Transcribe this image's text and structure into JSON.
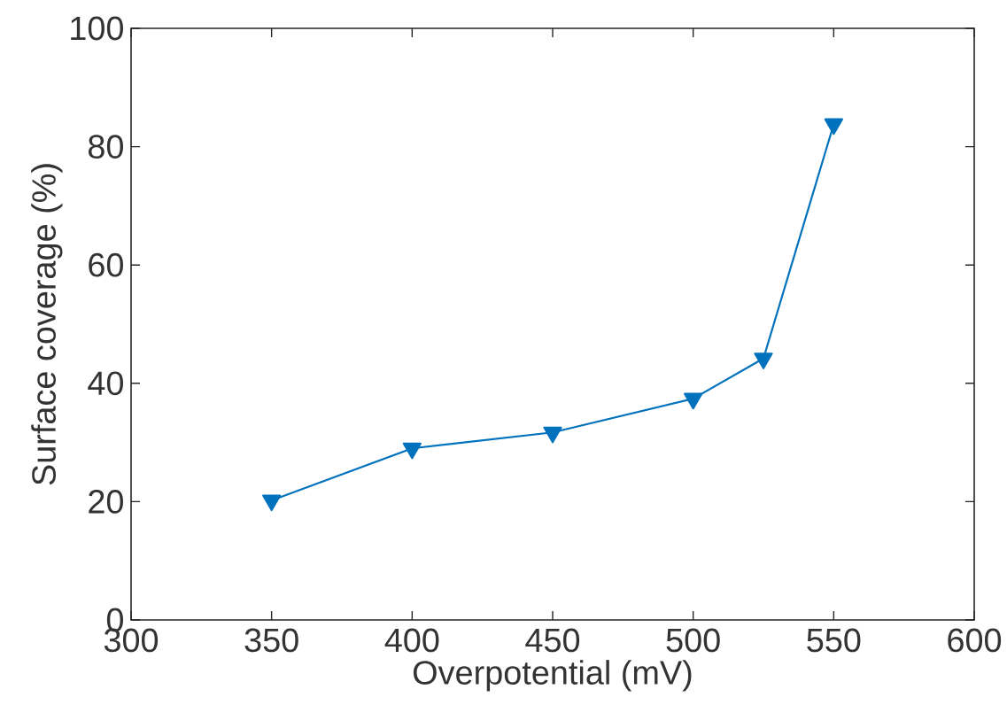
{
  "chart_data": {
    "type": "line",
    "xlabel": "Overpotential (mV)",
    "ylabel": "Surface coverage (%)",
    "x": [
      350,
      400,
      450,
      500,
      525,
      550
    ],
    "series": [
      {
        "color": "#0072bd",
        "values": [
          20.2,
          29.0,
          31.7,
          37.4,
          44.2,
          83.8
        ]
      }
    ],
    "xlim": [
      300,
      600
    ],
    "ylim": [
      0,
      100
    ],
    "xticks": [
      300,
      350,
      400,
      450,
      500,
      550,
      600
    ],
    "yticks": [
      0,
      20,
      40,
      60,
      80,
      100
    ],
    "grid": false,
    "marker": "triangle",
    "line_style": "solid"
  }
}
